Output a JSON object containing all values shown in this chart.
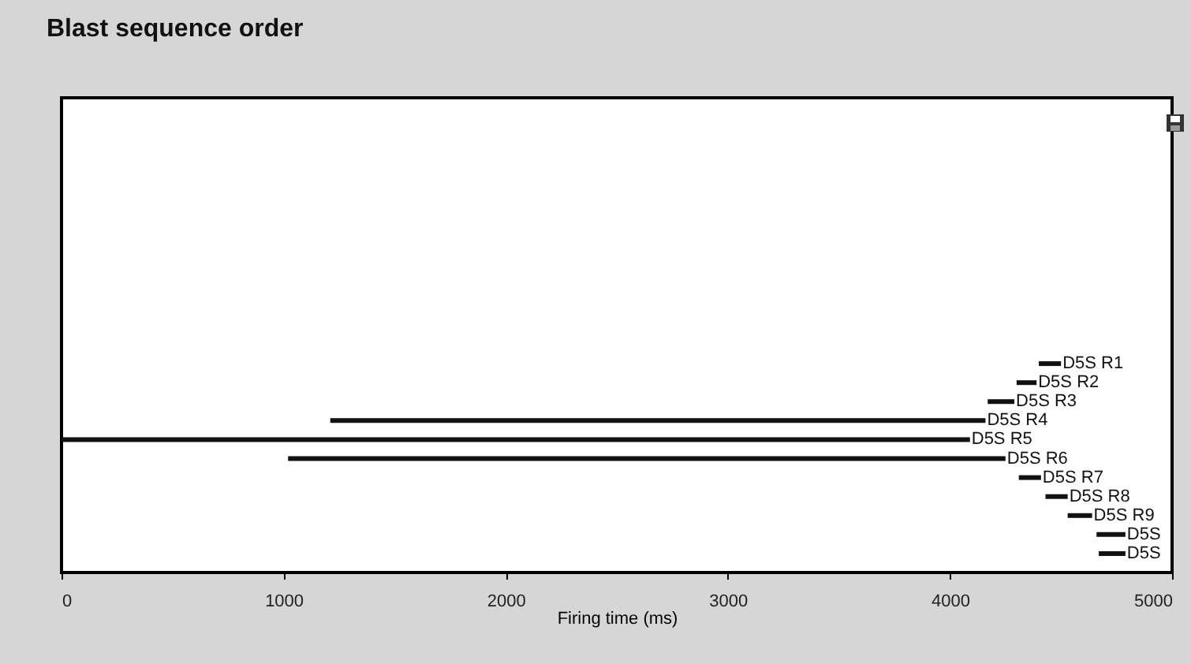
{
  "chart_data": {
    "type": "bar",
    "orientation": "horizontal",
    "title": "Blast sequence order",
    "xlabel": "Firing time (ms)",
    "categories": [
      null,
      null,
      null,
      null,
      null,
      null,
      null,
      null,
      null,
      null,
      null
    ],
    "base": [
      4400,
      4300,
      4170,
      1210,
      0,
      1020,
      4310,
      4430,
      4530,
      4660,
      4670
    ],
    "values": [
      100,
      90,
      120,
      2950,
      4090,
      3230,
      100,
      100,
      110,
      130,
      120
    ],
    "value_labels": [
      "D5S R1",
      "D5S R2",
      "D5S R3",
      "D5S R4",
      "D5S R5",
      "D5S R6",
      "D5S R7",
      "D5S R8",
      "D5S R9",
      "D5S",
      "D5S"
    ],
    "color": "#111111",
    "xlim": [
      0,
      5000
    ],
    "xticks": [
      0,
      1000,
      2000,
      3000,
      4000,
      5000
    ],
    "tick_labels": "x"
  }
}
